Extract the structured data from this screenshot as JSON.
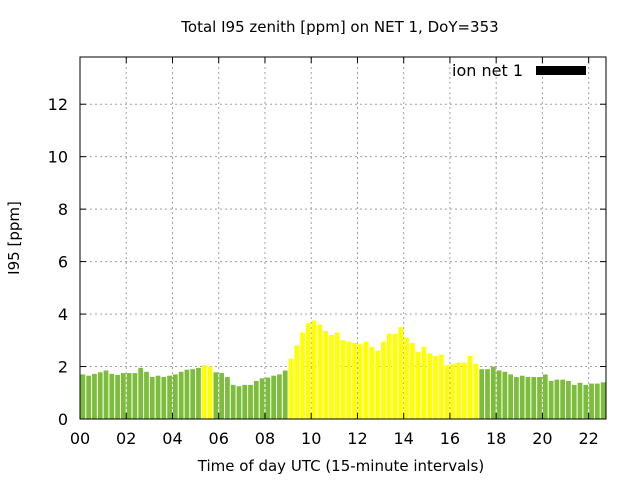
{
  "chart_data": {
    "type": "bar",
    "title": "Total I95 zenith [ppm] on NET 1, DoY=353",
    "xlabel": "Time of day UTC (15-minute intervals)",
    "ylabel": "I95 [ppm]",
    "ylim": [
      0,
      13.8
    ],
    "xlim": [
      0,
      22.75
    ],
    "grid": true,
    "legend": {
      "placement": "top-right",
      "entries": [
        {
          "label": "ion net 1",
          "color": "#000000"
        }
      ]
    },
    "x_ticks": [
      "00",
      "02",
      "04",
      "06",
      "08",
      "10",
      "12",
      "14",
      "16",
      "18",
      "20",
      "22"
    ],
    "y_ticks": [
      "0",
      "2",
      "4",
      "6",
      "8",
      "10",
      "12"
    ],
    "interval_hours": 0.25,
    "colors": {
      "normal": "#7cbd3c",
      "elevated": "#ffff00"
    },
    "series": [
      {
        "name": "ion net 1",
        "values": [
          1.7,
          1.65,
          1.72,
          1.78,
          1.85,
          1.72,
          1.68,
          1.75,
          1.75,
          1.75,
          1.95,
          1.8,
          1.6,
          1.65,
          1.6,
          1.65,
          1.7,
          1.8,
          1.88,
          1.9,
          1.95,
          2.05,
          2.0,
          1.78,
          1.75,
          1.6,
          1.3,
          1.25,
          1.3,
          1.3,
          1.45,
          1.55,
          1.58,
          1.65,
          1.7,
          1.85,
          2.3,
          2.8,
          3.3,
          3.65,
          3.75,
          3.6,
          3.35,
          3.2,
          3.3,
          3.0,
          2.95,
          2.9,
          2.85,
          2.95,
          2.75,
          2.6,
          2.95,
          3.25,
          3.25,
          3.5,
          3.1,
          2.9,
          2.55,
          2.75,
          2.5,
          2.4,
          2.45,
          2.05,
          2.1,
          2.15,
          2.15,
          2.4,
          2.1,
          1.9,
          1.9,
          2.0,
          1.85,
          1.8,
          1.7,
          1.6,
          1.65,
          1.6,
          1.6,
          1.6,
          1.7,
          1.45,
          1.5,
          1.5,
          1.45,
          1.3,
          1.38,
          1.3,
          1.35,
          1.35,
          1.4
        ],
        "levels": [
          "normal",
          "normal",
          "normal",
          "normal",
          "normal",
          "normal",
          "normal",
          "normal",
          "normal",
          "normal",
          "normal",
          "normal",
          "normal",
          "normal",
          "normal",
          "normal",
          "normal",
          "normal",
          "normal",
          "normal",
          "normal",
          "elevated",
          "elevated",
          "normal",
          "normal",
          "normal",
          "normal",
          "normal",
          "normal",
          "normal",
          "normal",
          "normal",
          "normal",
          "normal",
          "normal",
          "normal",
          "elevated",
          "elevated",
          "elevated",
          "elevated",
          "elevated",
          "elevated",
          "elevated",
          "elevated",
          "elevated",
          "elevated",
          "elevated",
          "elevated",
          "elevated",
          "elevated",
          "elevated",
          "elevated",
          "elevated",
          "elevated",
          "elevated",
          "elevated",
          "elevated",
          "elevated",
          "elevated",
          "elevated",
          "elevated",
          "elevated",
          "elevated",
          "elevated",
          "elevated",
          "elevated",
          "elevated",
          "elevated",
          "elevated",
          "normal",
          "normal",
          "normal",
          "normal",
          "normal",
          "normal",
          "normal",
          "normal",
          "normal",
          "normal",
          "normal",
          "normal",
          "normal",
          "normal",
          "normal",
          "normal",
          "normal",
          "normal",
          "normal",
          "normal",
          "normal",
          "normal"
        ]
      }
    ]
  }
}
